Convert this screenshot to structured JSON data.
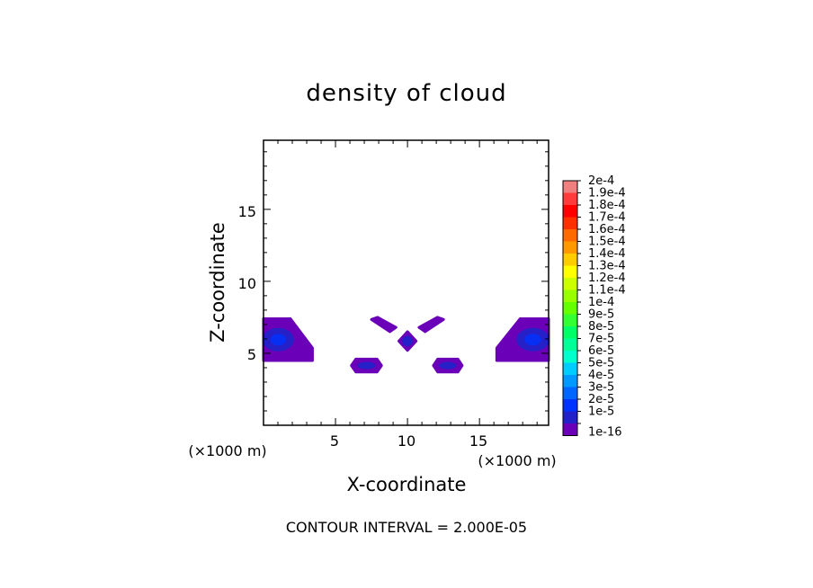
{
  "chart_data": {
    "type": "heatmap",
    "title": "density of cloud",
    "xlabel": "X-coordinate",
    "ylabel": "Z-coordinate",
    "x_unit": "(×1000 m)",
    "z_unit": "(×1000 m)",
    "xlim": [
      0,
      19.8
    ],
    "ylim": [
      0,
      19.8
    ],
    "x_ticks": [
      "5",
      "10",
      "15"
    ],
    "y_ticks": [
      "5",
      "10",
      "15"
    ],
    "footer": "CONTOUR INTERVAL = 2.000E-05",
    "colorbar": {
      "labels": [
        "2e-4",
        "1.9e-4",
        "1.8e-4",
        "1.7e-4",
        "1.6e-4",
        "1.5e-4",
        "1.4e-4",
        "1.3e-4",
        "1.2e-4",
        "1.1e-4",
        "1e-4",
        "9e-5",
        "8e-5",
        "7e-5",
        "6e-5",
        "5e-5",
        "4e-5",
        "3e-5",
        "2e-5",
        "1e-5",
        "1e-16"
      ],
      "colors": [
        "#f08080",
        "#ff3b3b",
        "#ff0000",
        "#ff3000",
        "#ff6a00",
        "#ff9900",
        "#ffcc00",
        "#ffff00",
        "#ccff00",
        "#99ff00",
        "#66ff00",
        "#33ff33",
        "#00ff66",
        "#00ff99",
        "#00ffcc",
        "#00ccff",
        "#0099ff",
        "#0066ff",
        "#0033ff",
        "#2222c8",
        "#6a00b8"
      ]
    },
    "regions": [
      {
        "name": "left-edge-cloud",
        "x_range": [
          0,
          3.4
        ],
        "z_range": [
          4.5,
          7.4
        ],
        "max_density": "2e-5"
      },
      {
        "name": "right-edge-cloud",
        "x_range": [
          16.2,
          19.8
        ],
        "z_range": [
          4.5,
          7.4
        ],
        "max_density": "2e-5"
      },
      {
        "name": "center-blob",
        "x_range": [
          9.4,
          10.6
        ],
        "z_range": [
          5.2,
          6.5
        ],
        "max_density": "1e-5"
      },
      {
        "name": "upper-left-streak",
        "x_range": [
          7.5,
          9.2
        ],
        "z_range": [
          6.5,
          7.5
        ],
        "max_density": "1e-16"
      },
      {
        "name": "upper-right-streak",
        "x_range": [
          10.8,
          12.5
        ],
        "z_range": [
          6.5,
          7.5
        ],
        "max_density": "1e-16"
      },
      {
        "name": "lower-left-blob",
        "x_range": [
          6.1,
          8.2
        ],
        "z_range": [
          3.7,
          4.6
        ],
        "max_density": "1e-5"
      },
      {
        "name": "lower-right-blob",
        "x_range": [
          11.8,
          13.8
        ],
        "z_range": [
          3.7,
          4.6
        ],
        "max_density": "1e-5"
      }
    ]
  }
}
